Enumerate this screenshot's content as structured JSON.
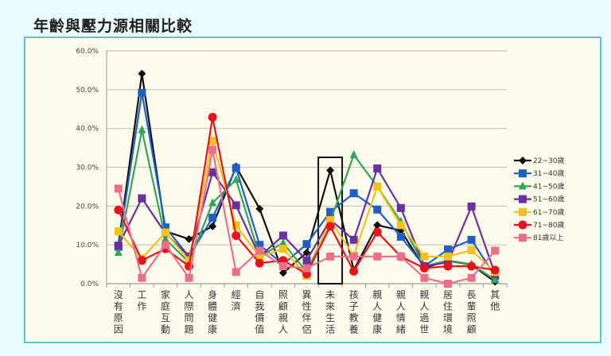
{
  "title": "年齡與壓力源相關比較",
  "chart_data": {
    "type": "line",
    "title": "年齡與壓力源相關比較",
    "xlabel": "",
    "ylabel": "",
    "ylim": [
      0,
      60
    ],
    "yticks": [
      "0.0%",
      "10.0%",
      "20.0%",
      "30.0%",
      "40.0%",
      "50.0%",
      "60.0%"
    ],
    "grid": true,
    "legend_position": "right",
    "highlight_category": "未來生活",
    "categories": [
      "沒有原因",
      "工作",
      "家庭互動",
      "人際問題",
      "身體健康",
      "經濟",
      "自我價值",
      "照顧親人",
      "異性伴侶",
      "未來生活",
      "孩子教養",
      "親人健康",
      "親人情緒",
      "親人過世",
      "居住環境",
      "長輩照顧",
      "其他"
    ],
    "series": [
      {
        "name": "22~30歲",
        "color": "#111111",
        "marker": "diamond",
        "values": [
          10,
          54.1,
          13.5,
          11.5,
          14.8,
          30.2,
          19.3,
          2.8,
          8,
          29.2,
          3.5,
          15.1,
          13.7,
          4.1,
          5.9,
          4.9,
          0.5
        ]
      },
      {
        "name": "31~40歲",
        "color": "#1f5fc4",
        "marker": "square",
        "values": [
          9.5,
          49.2,
          14.5,
          7,
          17,
          29.8,
          10,
          5,
          10.2,
          18.5,
          23.3,
          19.1,
          12.1,
          4.5,
          8.8,
          11.3,
          2
        ]
      },
      {
        "name": "41~50歲",
        "color": "#2fa65a",
        "marker": "triangle",
        "values": [
          8,
          39.6,
          11.5,
          5.5,
          20.8,
          26.8,
          7,
          10.5,
          3,
          16,
          33.2,
          25,
          16,
          4.5,
          6,
          5,
          1
        ]
      },
      {
        "name": "51~60歲",
        "color": "#6a2fa0",
        "marker": "square",
        "values": [
          9.8,
          22,
          13,
          7,
          28.7,
          20.2,
          7,
          12.4,
          6,
          16.5,
          11.3,
          29.7,
          19.5,
          4.5,
          5.5,
          19.9,
          2.5
        ]
      },
      {
        "name": "61~70歲",
        "color": "#f2c21b",
        "marker": "square",
        "values": [
          13.5,
          6.5,
          13.2,
          6,
          36.8,
          15,
          7,
          9,
          2,
          16.4,
          7.2,
          25,
          15.1,
          7,
          7,
          8.6,
          3
        ]
      },
      {
        "name": "71~80歲",
        "color": "#e8141c",
        "marker": "circle",
        "values": [
          19,
          6,
          9,
          4.5,
          42.9,
          12.4,
          5.3,
          6,
          2.5,
          14.8,
          3.2,
          13.3,
          7,
          4,
          4.5,
          4.5,
          3.5
        ]
      },
      {
        "name": "81歲以上",
        "color": "#ec6f8a",
        "marker": "square",
        "values": [
          24.5,
          1.5,
          10,
          1.5,
          34.5,
          3,
          8.5,
          4.5,
          4,
          7,
          7,
          7,
          7,
          1.5,
          0,
          1.5,
          8.5
        ]
      }
    ]
  }
}
